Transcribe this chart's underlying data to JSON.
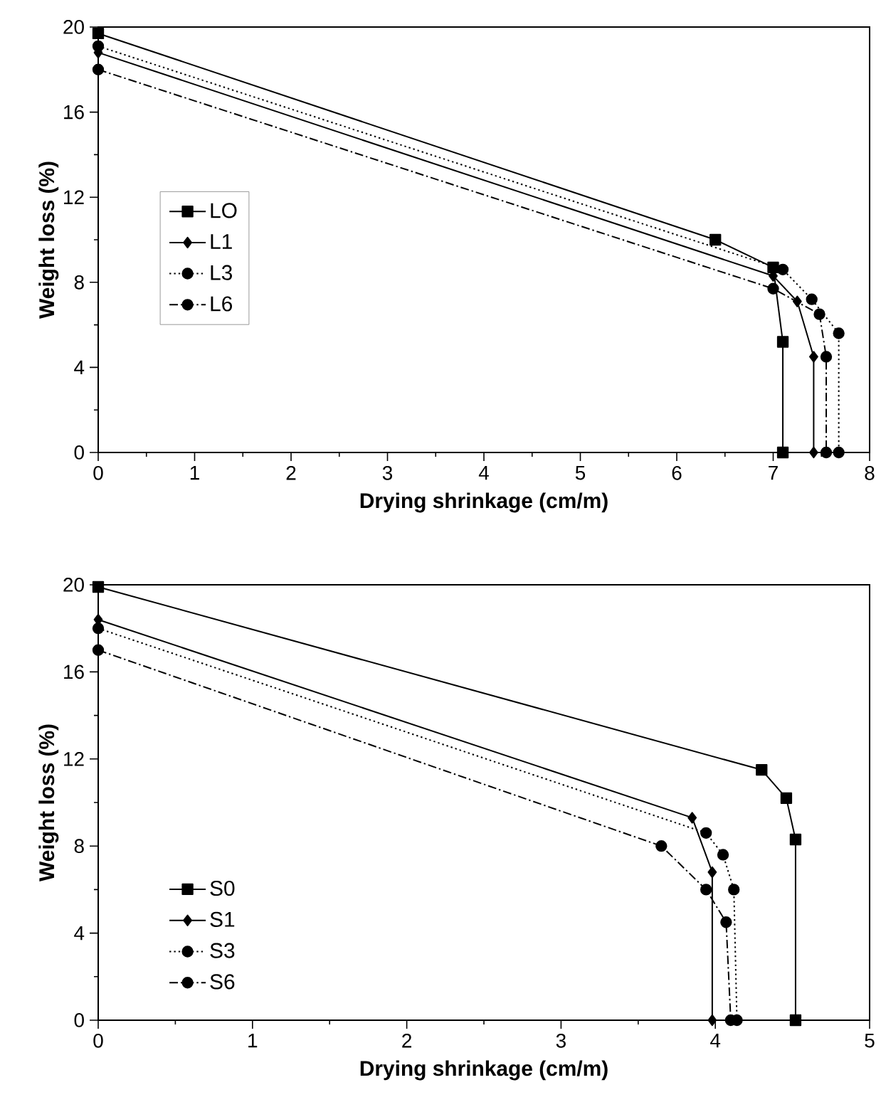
{
  "chart_data": [
    {
      "type": "line",
      "xlabel": "Drying shrinkage (cm/m)",
      "ylabel": "Weight loss (%)",
      "xlim": [
        0,
        8
      ],
      "ylim": [
        0,
        20
      ],
      "xticks": [
        0,
        1,
        2,
        3,
        4,
        5,
        6,
        7,
        8
      ],
      "yticks": [
        0,
        4,
        8,
        12,
        16,
        20
      ],
      "legend": "center left",
      "grid": false,
      "series": [
        {
          "name": "LO",
          "color": "#000000",
          "marker": "square",
          "line_style": "solid",
          "x": [
            0,
            6.4,
            7.0,
            7.1,
            7.1
          ],
          "values": [
            19.7,
            10.0,
            8.7,
            5.2,
            0
          ]
        },
        {
          "name": "L1",
          "color": "#000000",
          "marker": "diamond",
          "line_style": "solid",
          "x": [
            0,
            7.0,
            7.25,
            7.42,
            7.42
          ],
          "values": [
            18.8,
            8.3,
            7.1,
            4.5,
            0
          ]
        },
        {
          "name": "L3",
          "color": "#000000",
          "marker": "circle",
          "line_style": "dotted",
          "x": [
            0,
            7.1,
            7.4,
            7.68,
            7.68
          ],
          "values": [
            19.1,
            8.6,
            7.2,
            5.6,
            0
          ]
        },
        {
          "name": "L6",
          "color": "#000000",
          "marker": "circle",
          "line_style": "dashed",
          "x": [
            0,
            7.0,
            7.48,
            7.55,
            7.55
          ],
          "values": [
            18.0,
            7.7,
            6.5,
            4.5,
            0
          ]
        }
      ]
    },
    {
      "type": "line",
      "xlabel": "Drying shrinkage (cm/m)",
      "ylabel": "Weight loss (%)",
      "xlim": [
        0,
        5
      ],
      "ylim": [
        0,
        20
      ],
      "xticks": [
        0,
        1,
        2,
        3,
        4,
        5
      ],
      "yticks": [
        0,
        4,
        8,
        12,
        16,
        20
      ],
      "legend": "bottom left",
      "grid": false,
      "series": [
        {
          "name": "S0",
          "color": "#000000",
          "marker": "square",
          "line_style": "solid",
          "x": [
            0,
            4.3,
            4.46,
            4.52,
            4.52
          ],
          "values": [
            19.9,
            11.5,
            10.2,
            8.3,
            0
          ]
        },
        {
          "name": "S1",
          "color": "#000000",
          "marker": "diamond",
          "line_style": "solid",
          "x": [
            0,
            3.85,
            3.98,
            3.98
          ],
          "values": [
            18.4,
            9.3,
            6.8,
            0
          ]
        },
        {
          "name": "S3",
          "color": "#000000",
          "marker": "circle",
          "line_style": "dotted",
          "x": [
            0,
            3.94,
            4.05,
            4.12,
            4.14
          ],
          "values": [
            18.0,
            8.6,
            7.6,
            6.0,
            0
          ]
        },
        {
          "name": "S6",
          "color": "#000000",
          "marker": "circle",
          "line_style": "dashed",
          "x": [
            0,
            3.65,
            3.94,
            4.07,
            4.1
          ],
          "values": [
            17.0,
            8.0,
            6.0,
            4.5,
            0
          ]
        }
      ]
    }
  ]
}
